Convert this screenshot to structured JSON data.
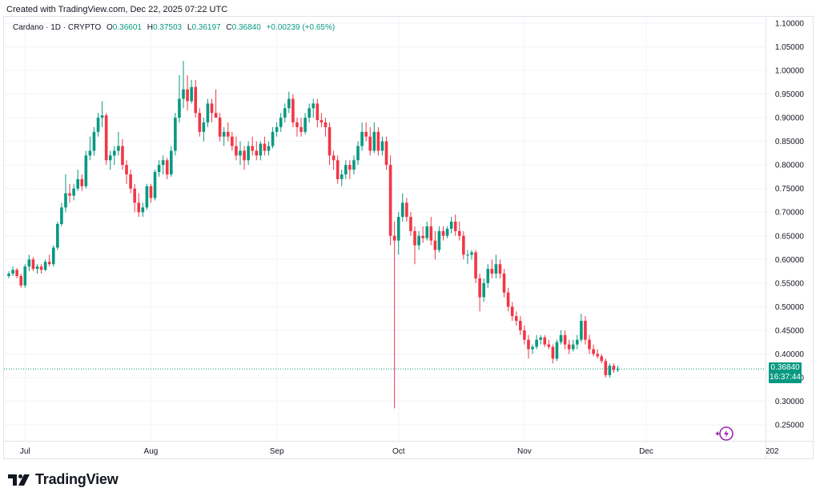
{
  "header": {
    "created_text": "Created with TradingView.com, Dec 22, 2025 07:22 UTC"
  },
  "legend": {
    "symbol": "Cardano · 1D · CRYPTO",
    "open_label": "O",
    "open": "0.36601",
    "high_label": "H",
    "high": "0.37503",
    "low_label": "L",
    "low": "0.36197",
    "close_label": "C",
    "close": "0.36840",
    "change": "+0.00239 (+0.65%)"
  },
  "price_tag": {
    "price": "0.36840",
    "countdown": "16:37:44"
  },
  "footer": {
    "brand": "TradingView"
  },
  "colors": {
    "up": "#089981",
    "down": "#f23645",
    "grid": "#f0f3fa",
    "axis_text": "#131722"
  },
  "chart_data": {
    "type": "candlestick",
    "title": "Cardano · 1D · CRYPTO",
    "y_ticks": [
      "0.25000",
      "0.30000",
      "0.35000",
      "0.40000",
      "0.45000",
      "0.50000",
      "0.55000",
      "0.60000",
      "0.65000",
      "0.70000",
      "0.75000",
      "0.80000",
      "0.85000",
      "0.90000",
      "0.95000",
      "1.00000",
      "1.05000",
      "1.10000"
    ],
    "x_ticks": [
      "Jul",
      "Aug",
      "Sep",
      "Oct",
      "Nov",
      "Dec",
      "202"
    ],
    "ylim": [
      0.22,
      1.12
    ],
    "last_price": 0.3684,
    "grid": true,
    "start_date": "2025-06-27",
    "ohlc": [
      [
        0.565,
        0.575,
        0.56,
        0.57
      ],
      [
        0.57,
        0.585,
        0.565,
        0.578
      ],
      [
        0.578,
        0.582,
        0.56,
        0.565
      ],
      [
        0.565,
        0.57,
        0.54,
        0.545
      ],
      [
        0.545,
        0.59,
        0.54,
        0.585
      ],
      [
        0.585,
        0.61,
        0.575,
        0.6
      ],
      [
        0.6,
        0.605,
        0.575,
        0.58
      ],
      [
        0.58,
        0.59,
        0.57,
        0.585
      ],
      [
        0.585,
        0.59,
        0.57,
        0.578
      ],
      [
        0.578,
        0.6,
        0.575,
        0.595
      ],
      [
        0.595,
        0.61,
        0.585,
        0.59
      ],
      [
        0.59,
        0.63,
        0.585,
        0.625
      ],
      [
        0.625,
        0.68,
        0.62,
        0.675
      ],
      [
        0.675,
        0.72,
        0.67,
        0.71
      ],
      [
        0.71,
        0.78,
        0.7,
        0.74
      ],
      [
        0.74,
        0.76,
        0.72,
        0.735
      ],
      [
        0.735,
        0.76,
        0.725,
        0.75
      ],
      [
        0.75,
        0.79,
        0.745,
        0.77
      ],
      [
        0.77,
        0.78,
        0.745,
        0.755
      ],
      [
        0.755,
        0.83,
        0.75,
        0.82
      ],
      [
        0.82,
        0.86,
        0.81,
        0.83
      ],
      [
        0.83,
        0.88,
        0.82,
        0.87
      ],
      [
        0.87,
        0.91,
        0.86,
        0.9
      ],
      [
        0.9,
        0.935,
        0.88,
        0.905
      ],
      [
        0.905,
        0.91,
        0.8,
        0.81
      ],
      [
        0.81,
        0.83,
        0.79,
        0.82
      ],
      [
        0.82,
        0.84,
        0.8,
        0.83
      ],
      [
        0.83,
        0.87,
        0.82,
        0.84
      ],
      [
        0.84,
        0.855,
        0.79,
        0.8
      ],
      [
        0.8,
        0.81,
        0.76,
        0.78
      ],
      [
        0.78,
        0.79,
        0.74,
        0.75
      ],
      [
        0.75,
        0.76,
        0.7,
        0.72
      ],
      [
        0.72,
        0.74,
        0.69,
        0.7
      ],
      [
        0.7,
        0.72,
        0.69,
        0.71
      ],
      [
        0.71,
        0.76,
        0.705,
        0.755
      ],
      [
        0.755,
        0.76,
        0.72,
        0.73
      ],
      [
        0.73,
        0.79,
        0.725,
        0.785
      ],
      [
        0.785,
        0.81,
        0.775,
        0.8
      ],
      [
        0.8,
        0.82,
        0.78,
        0.81
      ],
      [
        0.81,
        0.815,
        0.77,
        0.78
      ],
      [
        0.78,
        0.84,
        0.775,
        0.83
      ],
      [
        0.83,
        0.91,
        0.82,
        0.9
      ],
      [
        0.9,
        0.99,
        0.89,
        0.94
      ],
      [
        0.94,
        1.02,
        0.92,
        0.96
      ],
      [
        0.96,
        0.99,
        0.915,
        0.935
      ],
      [
        0.935,
        0.98,
        0.93,
        0.965
      ],
      [
        0.965,
        0.98,
        0.9,
        0.91
      ],
      [
        0.91,
        0.92,
        0.86,
        0.87
      ],
      [
        0.87,
        0.9,
        0.85,
        0.89
      ],
      [
        0.89,
        0.94,
        0.88,
        0.93
      ],
      [
        0.93,
        0.94,
        0.89,
        0.91
      ],
      [
        0.91,
        0.96,
        0.9,
        0.9
      ],
      [
        0.9,
        0.91,
        0.85,
        0.86
      ],
      [
        0.86,
        0.88,
        0.84,
        0.87
      ],
      [
        0.87,
        0.89,
        0.85,
        0.86
      ],
      [
        0.86,
        0.87,
        0.83,
        0.84
      ],
      [
        0.84,
        0.86,
        0.81,
        0.82
      ],
      [
        0.82,
        0.85,
        0.8,
        0.83
      ],
      [
        0.83,
        0.84,
        0.79,
        0.81
      ],
      [
        0.81,
        0.85,
        0.8,
        0.84
      ],
      [
        0.84,
        0.86,
        0.82,
        0.83
      ],
      [
        0.83,
        0.85,
        0.81,
        0.82
      ],
      [
        0.82,
        0.85,
        0.81,
        0.845
      ],
      [
        0.845,
        0.86,
        0.82,
        0.83
      ],
      [
        0.83,
        0.85,
        0.82,
        0.84
      ],
      [
        0.84,
        0.88,
        0.835,
        0.87
      ],
      [
        0.87,
        0.89,
        0.86,
        0.88
      ],
      [
        0.88,
        0.91,
        0.87,
        0.9
      ],
      [
        0.9,
        0.93,
        0.89,
        0.92
      ],
      [
        0.92,
        0.955,
        0.91,
        0.94
      ],
      [
        0.94,
        0.95,
        0.88,
        0.89
      ],
      [
        0.89,
        0.9,
        0.86,
        0.88
      ],
      [
        0.88,
        0.9,
        0.86,
        0.87
      ],
      [
        0.87,
        0.91,
        0.865,
        0.9
      ],
      [
        0.9,
        0.93,
        0.89,
        0.92
      ],
      [
        0.92,
        0.94,
        0.9,
        0.93
      ],
      [
        0.93,
        0.94,
        0.88,
        0.895
      ],
      [
        0.895,
        0.91,
        0.88,
        0.89
      ],
      [
        0.89,
        0.9,
        0.86,
        0.88
      ],
      [
        0.88,
        0.89,
        0.8,
        0.82
      ],
      [
        0.82,
        0.83,
        0.79,
        0.81
      ],
      [
        0.81,
        0.82,
        0.76,
        0.77
      ],
      [
        0.77,
        0.79,
        0.755,
        0.78
      ],
      [
        0.78,
        0.81,
        0.77,
        0.8
      ],
      [
        0.8,
        0.81,
        0.77,
        0.79
      ],
      [
        0.79,
        0.82,
        0.78,
        0.81
      ],
      [
        0.81,
        0.85,
        0.8,
        0.84
      ],
      [
        0.84,
        0.89,
        0.83,
        0.87
      ],
      [
        0.87,
        0.89,
        0.85,
        0.86
      ],
      [
        0.86,
        0.88,
        0.82,
        0.83
      ],
      [
        0.83,
        0.89,
        0.825,
        0.87
      ],
      [
        0.87,
        0.88,
        0.82,
        0.83
      ],
      [
        0.83,
        0.86,
        0.82,
        0.85
      ],
      [
        0.85,
        0.86,
        0.79,
        0.8
      ],
      [
        0.8,
        0.82,
        0.63,
        0.65
      ],
      [
        0.65,
        0.68,
        0.285,
        0.64
      ],
      [
        0.64,
        0.7,
        0.61,
        0.69
      ],
      [
        0.69,
        0.74,
        0.68,
        0.72
      ],
      [
        0.72,
        0.73,
        0.68,
        0.69
      ],
      [
        0.69,
        0.7,
        0.65,
        0.66
      ],
      [
        0.66,
        0.67,
        0.59,
        0.63
      ],
      [
        0.63,
        0.66,
        0.62,
        0.65
      ],
      [
        0.65,
        0.67,
        0.635,
        0.645
      ],
      [
        0.645,
        0.68,
        0.64,
        0.67
      ],
      [
        0.67,
        0.69,
        0.63,
        0.64
      ],
      [
        0.64,
        0.66,
        0.6,
        0.62
      ],
      [
        0.62,
        0.67,
        0.615,
        0.66
      ],
      [
        0.66,
        0.67,
        0.64,
        0.65
      ],
      [
        0.65,
        0.67,
        0.645,
        0.665
      ],
      [
        0.665,
        0.69,
        0.655,
        0.68
      ],
      [
        0.68,
        0.695,
        0.65,
        0.66
      ],
      [
        0.66,
        0.68,
        0.64,
        0.65
      ],
      [
        0.65,
        0.66,
        0.6,
        0.61
      ],
      [
        0.61,
        0.62,
        0.59,
        0.61
      ],
      [
        0.61,
        0.62,
        0.6,
        0.615
      ],
      [
        0.615,
        0.62,
        0.55,
        0.56
      ],
      [
        0.56,
        0.57,
        0.49,
        0.52
      ],
      [
        0.52,
        0.56,
        0.51,
        0.55
      ],
      [
        0.55,
        0.59,
        0.54,
        0.58
      ],
      [
        0.58,
        0.6,
        0.56,
        0.57
      ],
      [
        0.57,
        0.61,
        0.56,
        0.59
      ],
      [
        0.59,
        0.6,
        0.56,
        0.57
      ],
      [
        0.57,
        0.58,
        0.52,
        0.53
      ],
      [
        0.53,
        0.54,
        0.49,
        0.5
      ],
      [
        0.5,
        0.51,
        0.47,
        0.48
      ],
      [
        0.48,
        0.49,
        0.46,
        0.47
      ],
      [
        0.47,
        0.48,
        0.44,
        0.45
      ],
      [
        0.45,
        0.46,
        0.42,
        0.43
      ],
      [
        0.43,
        0.44,
        0.39,
        0.41
      ],
      [
        0.41,
        0.42,
        0.4,
        0.415
      ],
      [
        0.415,
        0.44,
        0.41,
        0.43
      ],
      [
        0.43,
        0.44,
        0.42,
        0.435
      ],
      [
        0.435,
        0.44,
        0.415,
        0.42
      ],
      [
        0.42,
        0.43,
        0.41,
        0.415
      ],
      [
        0.415,
        0.42,
        0.38,
        0.39
      ],
      [
        0.39,
        0.43,
        0.385,
        0.425
      ],
      [
        0.425,
        0.45,
        0.42,
        0.44
      ],
      [
        0.44,
        0.45,
        0.41,
        0.42
      ],
      [
        0.42,
        0.43,
        0.4,
        0.41
      ],
      [
        0.41,
        0.43,
        0.405,
        0.42
      ],
      [
        0.42,
        0.44,
        0.41,
        0.43
      ],
      [
        0.43,
        0.485,
        0.425,
        0.47
      ],
      [
        0.47,
        0.48,
        0.42,
        0.43
      ],
      [
        0.43,
        0.44,
        0.4,
        0.41
      ],
      [
        0.41,
        0.42,
        0.395,
        0.4
      ],
      [
        0.4,
        0.41,
        0.39,
        0.395
      ],
      [
        0.395,
        0.4,
        0.38,
        0.385
      ],
      [
        0.385,
        0.39,
        0.35,
        0.355
      ],
      [
        0.355,
        0.38,
        0.35,
        0.375
      ],
      [
        0.375,
        0.38,
        0.36,
        0.366
      ],
      [
        0.366,
        0.375,
        0.362,
        0.368
      ]
    ]
  }
}
